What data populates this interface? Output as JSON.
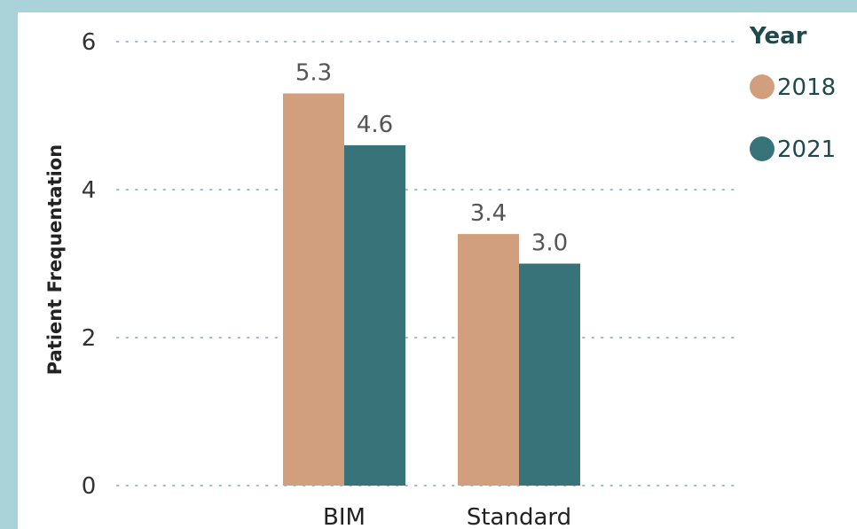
{
  "chart_data": {
    "type": "bar",
    "categories": [
      "BIM",
      "Standard"
    ],
    "series": [
      {
        "name": "2018",
        "values": [
          5.3,
          3.4
        ],
        "color": "#d29f7e"
      },
      {
        "name": "2021",
        "values": [
          4.6,
          3.0
        ],
        "color": "#377379"
      }
    ],
    "data_labels": [
      [
        "5.3",
        "3.4"
      ],
      [
        "4.6",
        "3.0"
      ]
    ],
    "ylabel": "Patient Frequentation",
    "xlabel": "",
    "ylim": [
      0,
      6
    ],
    "yticks": [
      0,
      2,
      4,
      6
    ],
    "grid": true,
    "legend": {
      "title": "Year",
      "placement": "top-right"
    }
  },
  "colors": {
    "frame_accent": "#a9d3d9",
    "grid": "#9bbfc0"
  }
}
